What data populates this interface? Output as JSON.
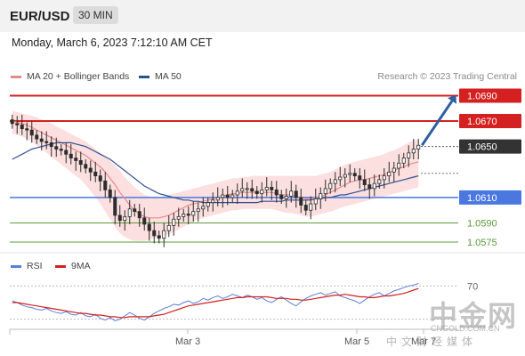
{
  "header": {
    "symbol": "EUR/USD",
    "timeframe": "30 MIN"
  },
  "datetime": "Monday, March 6, 2023 7:12:10 AM CET",
  "legend": {
    "items": [
      {
        "label": "MA 20 + Bollinger Bands",
        "color": "#e88a8a"
      },
      {
        "label": "MA 50",
        "color": "#2e4f8f"
      }
    ],
    "credit": "Research © 2023 Trading Central"
  },
  "rsi_legend": {
    "items": [
      {
        "label": "RSI",
        "color": "#5b7fd6"
      },
      {
        "label": "9MA",
        "color": "#d42020"
      }
    ]
  },
  "colors": {
    "resistance": "#d42020",
    "support": "#4a78e0",
    "target": "#5a9a3a",
    "current_price_bg": "#333333",
    "arrow": "#2f5f9f",
    "band_fill": "#fcd9d9",
    "candle": "#2d2d2d"
  },
  "watermark": {
    "brand": "中金网",
    "url": "CNGOLD.COM.CN",
    "tagline": "中文财经媒体"
  },
  "chart_data": [
    {
      "type": "candlestick",
      "series_names": [
        "MA 20 + Bollinger Bands",
        "MA 50"
      ],
      "x_tick_labels": [
        "Mar 3",
        "Mar 5",
        "Mar 7"
      ],
      "ylim": [
        1.0568,
        1.0698
      ],
      "levels": [
        {
          "value": 1.069,
          "label": "1.0690",
          "kind": "resistance"
        },
        {
          "value": 1.067,
          "label": "1.0670",
          "kind": "resistance"
        },
        {
          "value": 1.065,
          "label": "1.0650",
          "kind": "current"
        },
        {
          "value": 1.061,
          "label": "1.0610",
          "kind": "pivot"
        },
        {
          "value": 1.059,
          "label": "1.0590",
          "kind": "support"
        },
        {
          "value": 1.0575,
          "label": "1.0575",
          "kind": "support"
        }
      ],
      "close": [
        1.0668,
        1.0667,
        1.0664,
        1.0663,
        1.0659,
        1.0656,
        1.0654,
        1.0653,
        1.065,
        1.0648,
        1.0647,
        1.0644,
        1.0641,
        1.0639,
        1.0636,
        1.0633,
        1.063,
        1.0627,
        1.0623,
        1.0616,
        1.061,
        1.0596,
        1.0592,
        1.0595,
        1.0601,
        1.0599,
        1.0594,
        1.0589,
        1.0584,
        1.058,
        1.0578,
        1.0584,
        1.0588,
        1.0593,
        1.0595,
        1.0597,
        1.0596,
        1.0599,
        1.0601,
        1.0603,
        1.0606,
        1.0608,
        1.061,
        1.0612,
        1.061,
        1.0612,
        1.0615,
        1.0617,
        1.0617,
        1.0615,
        1.0613,
        1.0616,
        1.0618,
        1.0616,
        1.0612,
        1.0609,
        1.0611,
        1.0615,
        1.061,
        1.0604,
        1.06,
        1.0605,
        1.0609,
        1.0613,
        1.0617,
        1.0621,
        1.0624,
        1.0626,
        1.0628,
        1.0629,
        1.0627,
        1.0624,
        1.062,
        1.0617,
        1.0621,
        1.0624,
        1.0627,
        1.063,
        1.0633,
        1.0637,
        1.0641,
        1.0645,
        1.0648,
        1.0651
      ],
      "ma20": [
        1.067,
        1.0669,
        1.0668,
        1.0667,
        1.0665,
        1.0663,
        1.0661,
        1.0659,
        1.0657,
        1.0655,
        1.0653,
        1.0651,
        1.0649,
        1.0647,
        1.0645,
        1.0643,
        1.064,
        1.0637,
        1.0634,
        1.063,
        1.0625,
        1.062,
        1.0614,
        1.0609,
        1.0604,
        1.06,
        1.0597,
        1.0595,
        1.0594,
        1.0594,
        1.0594,
        1.0595,
        1.0596,
        1.0598,
        1.06,
        1.0602,
        1.0604,
        1.0605,
        1.0606,
        1.0607,
        1.0608,
        1.0609,
        1.061,
        1.0611,
        1.0612,
        1.0613,
        1.0613,
        1.0614,
        1.0614,
        1.0614,
        1.0614,
        1.0614,
        1.0614,
        1.0614,
        1.0613,
        1.0612,
        1.0612,
        1.0612,
        1.0611,
        1.061,
        1.0609,
        1.0609,
        1.061,
        1.0611,
        1.0612,
        1.0614,
        1.0616,
        1.0618,
        1.062,
        1.0622,
        1.0623,
        1.0624,
        1.0624,
        1.0625,
        1.0626,
        1.0627,
        1.0628,
        1.063,
        1.0631,
        1.0633,
        1.0634,
        1.0636,
        1.0637,
        1.0638
      ],
      "ma50": [
        1.064,
        1.0642,
        1.0644,
        1.0646,
        1.0648,
        1.0649,
        1.065,
        1.0651,
        1.0652,
        1.0653,
        1.0653,
        1.0653,
        1.0653,
        1.0652,
        1.0651,
        1.065,
        1.0648,
        1.0646,
        1.0644,
        1.0642,
        1.064,
        1.0637,
        1.0634,
        1.0631,
        1.0628,
        1.0625,
        1.0622,
        1.0619,
        1.0617,
        1.0615,
        1.0613,
        1.0612,
        1.0611,
        1.061,
        1.0609,
        1.0608,
        1.0608,
        1.0607,
        1.0607,
        1.0606,
        1.0606,
        1.0606,
        1.0606,
        1.0606,
        1.0606,
        1.0606,
        1.0606,
        1.0606,
        1.0606,
        1.0606,
        1.0606,
        1.0607,
        1.0607,
        1.0607,
        1.0607,
        1.0607,
        1.0608,
        1.0608,
        1.0608,
        1.0608,
        1.0608,
        1.0608,
        1.0609,
        1.0609,
        1.061,
        1.061,
        1.0611,
        1.0612,
        1.0612,
        1.0613,
        1.0614,
        1.0615,
        1.0616,
        1.0617,
        1.0618,
        1.0619,
        1.062,
        1.0621,
        1.0622,
        1.0623,
        1.0624,
        1.0625,
        1.0626,
        1.0627
      ],
      "bb_upper": [
        1.0678,
        1.0677,
        1.0676,
        1.0675,
        1.0674,
        1.0673,
        1.0671,
        1.067,
        1.0668,
        1.0666,
        1.0664,
        1.0662,
        1.066,
        1.0658,
        1.0656,
        1.0654,
        1.0651,
        1.0648,
        1.0645,
        1.0642,
        1.0639,
        1.0635,
        1.0631,
        1.0626,
        1.0622,
        1.0618,
        1.0615,
        1.0612,
        1.0611,
        1.061,
        1.061,
        1.0611,
        1.0612,
        1.0613,
        1.0614,
        1.0615,
        1.0616,
        1.0617,
        1.0618,
        1.0619,
        1.062,
        1.0621,
        1.0622,
        1.0623,
        1.0624,
        1.0625,
        1.0625,
        1.0626,
        1.0626,
        1.0627,
        1.0627,
        1.0627,
        1.0627,
        1.0627,
        1.0627,
        1.0627,
        1.0627,
        1.0627,
        1.0627,
        1.0627,
        1.0627,
        1.0627,
        1.0627,
        1.0628,
        1.0629,
        1.063,
        1.0632,
        1.0634,
        1.0636,
        1.0637,
        1.0638,
        1.0639,
        1.064,
        1.0641,
        1.0642,
        1.0643,
        1.0644,
        1.0646,
        1.0647,
        1.0649,
        1.0651,
        1.0653,
        1.0655,
        1.0656
      ],
      "bb_lower": [
        1.066,
        1.0659,
        1.0658,
        1.0656,
        1.0654,
        1.0651,
        1.0648,
        1.0645,
        1.0642,
        1.0639,
        1.0636,
        1.0633,
        1.063,
        1.0627,
        1.0624,
        1.062,
        1.0615,
        1.061,
        1.0605,
        1.0599,
        1.0593,
        1.0587,
        1.0582,
        1.0579,
        1.0577,
        1.0576,
        1.0576,
        1.0576,
        1.0577,
        1.0578,
        1.0579,
        1.058,
        1.0581,
        1.0583,
        1.0585,
        1.0587,
        1.0589,
        1.0591,
        1.0593,
        1.0594,
        1.0595,
        1.0596,
        1.0597,
        1.0598,
        1.0599,
        1.06,
        1.06,
        1.0601,
        1.0601,
        1.0601,
        1.0601,
        1.0601,
        1.0601,
        1.0601,
        1.06,
        1.0599,
        1.0598,
        1.0598,
        1.0597,
        1.0596,
        1.0595,
        1.0595,
        1.0596,
        1.0597,
        1.0598,
        1.0599,
        1.06,
        1.0602,
        1.0603,
        1.0604,
        1.0605,
        1.0606,
        1.0607,
        1.0608,
        1.0609,
        1.061,
        1.0611,
        1.0612,
        1.0613,
        1.0614,
        1.0615,
        1.0616,
        1.0617,
        1.0618
      ],
      "projection": {
        "from": 1.0651,
        "to": 1.069
      }
    },
    {
      "type": "line",
      "title": "RSI",
      "series_names": [
        "RSI",
        "9MA"
      ],
      "ylim": [
        20,
        80
      ],
      "level_labels": [
        {
          "value": 70,
          "label": "70"
        }
      ],
      "rsi": [
        52,
        50,
        47,
        45,
        44,
        42,
        41,
        43,
        40,
        38,
        37,
        39,
        36,
        35,
        38,
        34,
        33,
        36,
        31,
        29,
        32,
        28,
        30,
        34,
        38,
        35,
        31,
        29,
        33,
        37,
        40,
        43,
        45,
        48,
        47,
        50,
        52,
        49,
        51,
        55,
        53,
        56,
        58,
        55,
        57,
        60,
        58,
        56,
        59,
        57,
        54,
        56,
        52,
        50,
        54,
        57,
        53,
        49,
        46,
        51,
        55,
        58,
        60,
        62,
        59,
        61,
        63,
        58,
        56,
        54,
        52,
        49,
        53,
        57,
        60,
        62,
        58,
        61,
        64,
        66,
        68,
        70,
        71,
        73
      ],
      "ma9": [
        50,
        50,
        49,
        48,
        47,
        46,
        45,
        44,
        43,
        42,
        41,
        40,
        39,
        38,
        37,
        37,
        36,
        35,
        35,
        34,
        33,
        33,
        32,
        32,
        33,
        33,
        33,
        33,
        33,
        34,
        35,
        36,
        38,
        40,
        42,
        44,
        46,
        47,
        48,
        49,
        50,
        51,
        52,
        53,
        54,
        55,
        56,
        56,
        57,
        57,
        57,
        57,
        57,
        56,
        55,
        55,
        55,
        54,
        54,
        53,
        53,
        54,
        55,
        56,
        57,
        58,
        59,
        59,
        60,
        59,
        58,
        57,
        57,
        56,
        56,
        57,
        58,
        58,
        59,
        60,
        61,
        63,
        65,
        67
      ]
    }
  ]
}
